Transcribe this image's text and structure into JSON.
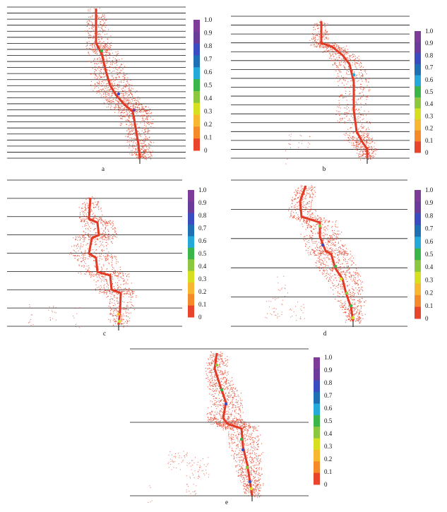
{
  "figure": {
    "colorbar": {
      "ticks": [
        "1.0",
        "0.9",
        "0.8",
        "0.7",
        "0.6",
        "0.5",
        "0.4",
        "0.3",
        "0.2",
        "0.1",
        "0"
      ],
      "colors": [
        "#7d3c98",
        "#6a3d9a",
        "#3b4cc0",
        "#1f6fb5",
        "#25a9d9",
        "#39b54a",
        "#8dc63f",
        "#d7df23",
        "#f7b731",
        "#f48a29",
        "#e8452c"
      ]
    },
    "panels": [
      {
        "label": "a",
        "layers": 25
      },
      {
        "label": "b",
        "layers": 16
      },
      {
        "label": "c",
        "layers": 8
      },
      {
        "label": "d",
        "layers": 5
      },
      {
        "label": "e",
        "layers": 2
      }
    ]
  }
}
